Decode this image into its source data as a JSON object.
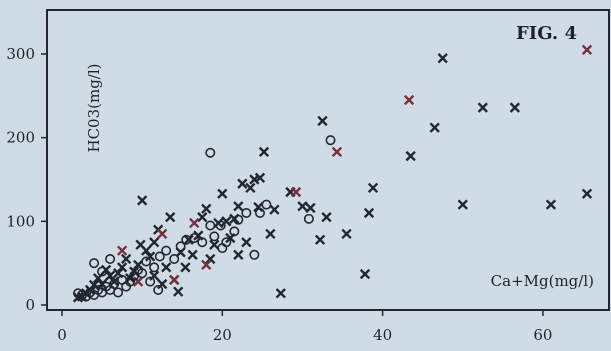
{
  "figure": {
    "label": "FIG. 4"
  },
  "colors": {
    "background": "#cfdce6",
    "ink": "#23262e",
    "highlight": "#7a2e3c"
  },
  "chart_data": {
    "type": "scatter",
    "title": "FIG. 4",
    "xlabel": "Ca+Mg(mg/l)",
    "ylabel": "HC03(mg/l)",
    "xlim": [
      0,
      70
    ],
    "ylim": [
      0,
      340
    ],
    "x_ticks": [
      "0",
      "20",
      "40",
      "60"
    ],
    "y_ticks": [
      "0",
      "100",
      "200",
      "300"
    ],
    "grid": false,
    "series": [
      {
        "marker": "x",
        "color": "#23262e",
        "points": [
          [
            47.5,
            295
          ],
          [
            32.5,
            220
          ],
          [
            43.5,
            178
          ],
          [
            46.5,
            212
          ],
          [
            52.5,
            236
          ],
          [
            56.5,
            236
          ],
          [
            65.5,
            133
          ],
          [
            61,
            120
          ],
          [
            50,
            120
          ],
          [
            38.8,
            140
          ],
          [
            38.3,
            110
          ],
          [
            37.8,
            37
          ],
          [
            35.5,
            85
          ],
          [
            32.2,
            78
          ],
          [
            31,
            116
          ],
          [
            30,
            118
          ],
          [
            28.5,
            135
          ],
          [
            27.3,
            14
          ],
          [
            26.5,
            114
          ],
          [
            26,
            85
          ],
          [
            25.2,
            183
          ],
          [
            24.7,
            152
          ],
          [
            24,
            150
          ],
          [
            24.5,
            117
          ],
          [
            23.5,
            140
          ],
          [
            22.5,
            145
          ],
          [
            22,
            118
          ],
          [
            21.5,
            103
          ],
          [
            21,
            80
          ],
          [
            20.5,
            100
          ],
          [
            20,
            133
          ],
          [
            19.5,
            98
          ],
          [
            19,
            72
          ],
          [
            18,
            115
          ],
          [
            17.5,
            105
          ],
          [
            17,
            83
          ],
          [
            16.3,
            60
          ],
          [
            15.8,
            78
          ],
          [
            15.4,
            45
          ],
          [
            14.8,
            63
          ],
          [
            14.5,
            16
          ],
          [
            13.5,
            105
          ],
          [
            12.5,
            25
          ],
          [
            12,
            90
          ],
          [
            11.5,
            35
          ],
          [
            11,
            58
          ],
          [
            10.5,
            65
          ],
          [
            10,
            125
          ],
          [
            9.5,
            48
          ],
          [
            9,
            40
          ],
          [
            8.5,
            32
          ],
          [
            8,
            55
          ],
          [
            7.5,
            45
          ],
          [
            7,
            38
          ],
          [
            6.5,
            28
          ],
          [
            6,
            35
          ],
          [
            5.5,
            42
          ],
          [
            5,
            25
          ],
          [
            4.5,
            32
          ],
          [
            4,
            24
          ],
          [
            3.5,
            18
          ],
          [
            3,
            14
          ],
          [
            2.5,
            10
          ],
          [
            2,
            9
          ],
          [
            22,
            60
          ],
          [
            23,
            75
          ],
          [
            18.5,
            55
          ],
          [
            14,
            30
          ],
          [
            13,
            45
          ],
          [
            11.5,
            75
          ],
          [
            9.8,
            72
          ],
          [
            33,
            105
          ]
        ]
      },
      {
        "marker": "x",
        "color": "#7a2e3c",
        "points": [
          [
            43.3,
            245
          ],
          [
            65.5,
            305
          ],
          [
            34.3,
            183
          ],
          [
            29.2,
            135
          ],
          [
            18,
            48
          ],
          [
            16.5,
            98
          ],
          [
            14,
            30
          ],
          [
            12.5,
            85
          ],
          [
            9.5,
            28
          ],
          [
            7.5,
            65
          ]
        ]
      },
      {
        "marker": "o",
        "color": "#23262e",
        "points": [
          [
            18.5,
            182
          ],
          [
            33.5,
            197
          ],
          [
            30.8,
            103
          ],
          [
            25.5,
            120
          ],
          [
            24.7,
            110
          ],
          [
            23,
            110
          ],
          [
            22,
            102
          ],
          [
            21.5,
            88
          ],
          [
            20.5,
            75
          ],
          [
            19.8,
            95
          ],
          [
            19,
            82
          ],
          [
            18.5,
            95
          ],
          [
            17.5,
            75
          ],
          [
            16.5,
            80
          ],
          [
            15.5,
            78
          ],
          [
            14.8,
            70
          ],
          [
            14,
            55
          ],
          [
            13,
            65
          ],
          [
            12.2,
            58
          ],
          [
            11.5,
            45
          ],
          [
            10.5,
            52
          ],
          [
            10,
            38
          ],
          [
            9.5,
            42
          ],
          [
            9,
            35
          ],
          [
            8.5,
            28
          ],
          [
            8,
            22
          ],
          [
            7.5,
            30
          ],
          [
            6.5,
            25
          ],
          [
            6,
            18
          ],
          [
            5.5,
            22
          ],
          [
            5,
            15
          ],
          [
            4.5,
            18
          ],
          [
            4,
            12
          ],
          [
            3.5,
            15
          ],
          [
            3,
            10
          ],
          [
            2.5,
            12
          ],
          [
            2,
            14
          ],
          [
            24,
            60
          ],
          [
            20,
            68
          ],
          [
            12,
            18
          ],
          [
            11,
            28
          ],
          [
            7,
            15
          ],
          [
            5,
            40
          ],
          [
            4,
            50
          ],
          [
            6,
            55
          ]
        ]
      }
    ]
  }
}
